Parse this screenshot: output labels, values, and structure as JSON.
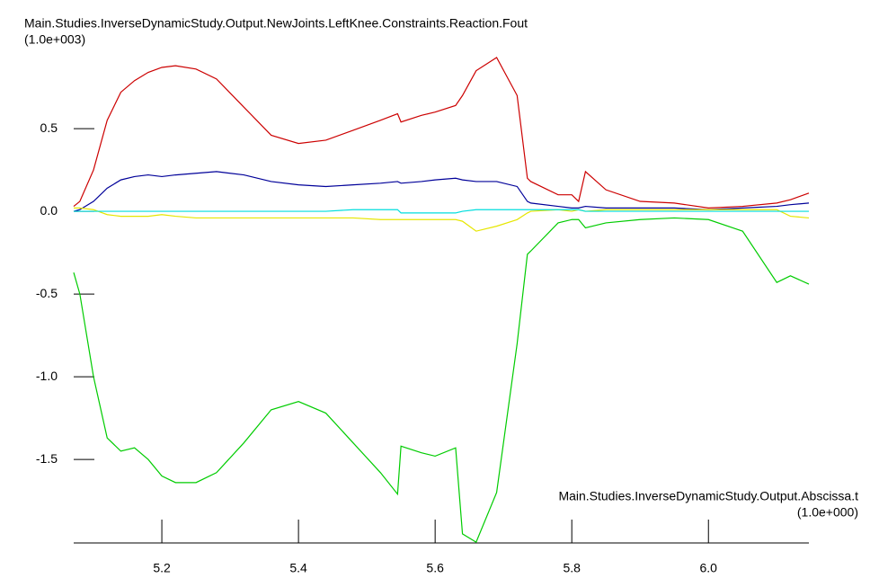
{
  "chart_data": {
    "type": "line",
    "title": "Main.Studies.InverseDynamicStudy.Output.NewJoints.LeftKnee.Constraints.Reaction.Fout",
    "y_scale_label": "(1.0e+003)",
    "x_label": "Main.Studies.InverseDynamicStudy.Output.Abscissa.t",
    "x_scale_label": "(1.0e+000)",
    "x": [
      5.071,
      5.08,
      5.1,
      5.12,
      5.14,
      5.16,
      5.18,
      5.2,
      5.22,
      5.25,
      5.28,
      5.32,
      5.36,
      5.4,
      5.44,
      5.48,
      5.52,
      5.545,
      5.55,
      5.58,
      5.6,
      5.63,
      5.64,
      5.66,
      5.69,
      5.72,
      5.735,
      5.74,
      5.78,
      5.8,
      5.81,
      5.82,
      5.85,
      5.9,
      5.95,
      6.0,
      6.05,
      6.1,
      6.12,
      6.147
    ],
    "series": [
      {
        "color": "#cc0000",
        "values": [
          0.03,
          0.06,
          0.25,
          0.55,
          0.72,
          0.79,
          0.84,
          0.87,
          0.88,
          0.86,
          0.8,
          0.63,
          0.46,
          0.41,
          0.43,
          0.49,
          0.55,
          0.59,
          0.54,
          0.58,
          0.6,
          0.64,
          0.7,
          0.85,
          0.93,
          0.7,
          0.2,
          0.18,
          0.1,
          0.1,
          0.06,
          0.24,
          0.13,
          0.06,
          0.05,
          0.02,
          0.03,
          0.05,
          0.07,
          0.11
        ]
      },
      {
        "color": "#00cc00",
        "values": [
          -0.37,
          -0.5,
          -1.0,
          -1.37,
          -1.45,
          -1.43,
          -1.5,
          -1.6,
          -1.64,
          -1.64,
          -1.58,
          -1.4,
          -1.2,
          -1.15,
          -1.22,
          -1.4,
          -1.58,
          -1.71,
          -1.42,
          -1.46,
          -1.48,
          -1.43,
          -1.95,
          -2.0,
          -1.7,
          -0.8,
          -0.26,
          -0.24,
          -0.07,
          -0.05,
          -0.05,
          -0.1,
          -0.07,
          -0.05,
          -0.04,
          -0.05,
          -0.12,
          -0.43,
          -0.39,
          -0.44
        ]
      },
      {
        "color": "#000099",
        "values": [
          0.0,
          0.01,
          0.06,
          0.14,
          0.19,
          0.21,
          0.22,
          0.21,
          0.22,
          0.23,
          0.24,
          0.22,
          0.18,
          0.16,
          0.15,
          0.16,
          0.17,
          0.18,
          0.17,
          0.18,
          0.19,
          0.2,
          0.19,
          0.18,
          0.18,
          0.15,
          0.06,
          0.05,
          0.03,
          0.02,
          0.02,
          0.03,
          0.02,
          0.02,
          0.02,
          0.01,
          0.02,
          0.03,
          0.04,
          0.05
        ]
      },
      {
        "color": "#e6e600",
        "values": [
          0.02,
          0.02,
          0.01,
          -0.02,
          -0.03,
          -0.03,
          -0.03,
          -0.02,
          -0.03,
          -0.04,
          -0.04,
          -0.04,
          -0.04,
          -0.04,
          -0.04,
          -0.04,
          -0.05,
          -0.05,
          -0.05,
          -0.05,
          -0.05,
          -0.05,
          -0.06,
          -0.12,
          -0.09,
          -0.05,
          -0.01,
          0.0,
          0.01,
          0.0,
          0.01,
          0.0,
          0.01,
          0.01,
          0.01,
          0.01,
          0.01,
          0.01,
          -0.03,
          -0.04
        ]
      },
      {
        "color": "#00dddd",
        "values": [
          0.0,
          0.0,
          0.0,
          0.0,
          0.0,
          0.0,
          0.0,
          0.0,
          0.0,
          0.0,
          0.0,
          0.0,
          0.0,
          0.0,
          0.0,
          0.01,
          0.01,
          0.01,
          -0.01,
          -0.01,
          -0.01,
          -0.01,
          0.0,
          0.01,
          0.01,
          0.01,
          0.01,
          0.01,
          0.01,
          0.01,
          0.01,
          0.0,
          0.0,
          0.0,
          0.0,
          0.0,
          0.0,
          0.0,
          0.0,
          0.0
        ]
      }
    ],
    "xlim": [
      5.071,
      6.147
    ],
    "ylim": [
      -2.005,
      1.033
    ],
    "xticks": [
      5.2,
      5.4,
      5.6,
      5.8,
      {
        "value": 6.0,
        "label": "6.0"
      }
    ],
    "yticks": [
      0.5,
      {
        "value": 0,
        "label": "0.0"
      },
      -0.5,
      {
        "value": -1.0,
        "label": "-1.0"
      },
      -1.5
    ]
  }
}
